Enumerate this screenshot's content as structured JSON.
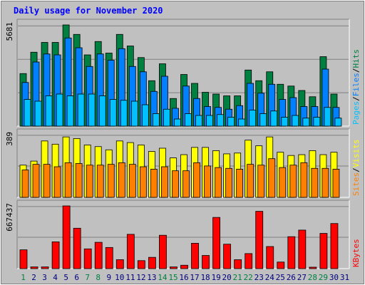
{
  "title": "Daily usage for November 2020",
  "chart_data": [
    {
      "type": "bar",
      "panel": "hits-files-pages",
      "categories": [
        "1",
        "2",
        "3",
        "4",
        "5",
        "6",
        "7",
        "8",
        "9",
        "10",
        "11",
        "12",
        "13",
        "14",
        "15",
        "16",
        "17",
        "18",
        "19",
        "20",
        "21",
        "22",
        "23",
        "24",
        "25",
        "26",
        "27",
        "28",
        "29",
        "30",
        "31"
      ],
      "ymax_label": "5681",
      "ymax": 5681,
      "grid": true,
      "series": [
        {
          "name": "Hits",
          "color": "#008040",
          "values": [
            2950,
            4150,
            4700,
            4700,
            5681,
            5150,
            4000,
            4750,
            4100,
            5150,
            4500,
            3850,
            2550,
            3500,
            1550,
            2900,
            2400,
            1900,
            1800,
            1700,
            1700,
            3150,
            2550,
            3050,
            2350,
            2250,
            2000,
            1650,
            3900,
            1800,
            0
          ]
        },
        {
          "name": "Files",
          "color": "#0080ff",
          "values": [
            2450,
            3600,
            4050,
            4000,
            4950,
            4400,
            3350,
            4050,
            3700,
            4350,
            3350,
            3050,
            1950,
            2800,
            1000,
            2250,
            1550,
            1100,
            1050,
            950,
            1150,
            2400,
            1850,
            2350,
            1500,
            1600,
            1100,
            1100,
            3200,
            1050,
            0
          ]
        },
        {
          "name": "Pages",
          "color": "#00c0ff",
          "values": [
            1500,
            1400,
            1700,
            1800,
            1700,
            1800,
            1800,
            1700,
            1500,
            1450,
            1400,
            1200,
            700,
            950,
            400,
            700,
            600,
            600,
            650,
            500,
            400,
            900,
            700,
            850,
            500,
            600,
            450,
            500,
            1050,
            450,
            0
          ]
        }
      ],
      "legend": [
        "Pages",
        "Files",
        "Hits"
      ],
      "legend_separator": "/"
    },
    {
      "type": "bar",
      "panel": "visits-sites",
      "categories": [
        "1",
        "2",
        "3",
        "4",
        "5",
        "6",
        "7",
        "8",
        "9",
        "10",
        "11",
        "12",
        "13",
        "14",
        "15",
        "16",
        "17",
        "18",
        "19",
        "20",
        "21",
        "22",
        "23",
        "24",
        "25",
        "26",
        "27",
        "28",
        "29",
        "30",
        "31"
      ],
      "ymax_label": "389",
      "ymax": 389,
      "grid": true,
      "series": [
        {
          "name": "Visits",
          "color": "#ffff00",
          "values": [
            200,
            225,
            350,
            330,
            375,
            365,
            325,
            315,
            295,
            350,
            340,
            325,
            285,
            305,
            245,
            265,
            310,
            310,
            290,
            270,
            275,
            355,
            320,
            375,
            280,
            260,
            265,
            290,
            265,
            280,
            0
          ]
        },
        {
          "name": "Sites",
          "color": "#ff8000",
          "values": [
            170,
            205,
            205,
            190,
            215,
            210,
            200,
            200,
            205,
            215,
            205,
            190,
            175,
            190,
            165,
            165,
            215,
            195,
            185,
            180,
            175,
            205,
            200,
            240,
            185,
            200,
            215,
            180,
            180,
            175,
            0
          ]
        }
      ],
      "legend": [
        "Sites",
        "Visits"
      ],
      "legend_separator": "/"
    },
    {
      "type": "bar",
      "panel": "kbytes",
      "categories": [
        "1",
        "2",
        "3",
        "4",
        "5",
        "6",
        "7",
        "8",
        "9",
        "10",
        "11",
        "12",
        "13",
        "14",
        "15",
        "16",
        "17",
        "18",
        "19",
        "20",
        "21",
        "22",
        "23",
        "24",
        "25",
        "26",
        "27",
        "28",
        "29",
        "30",
        "31"
      ],
      "ymax_label": "667437",
      "ymax": 667437,
      "grid": true,
      "series": [
        {
          "name": "KBytes",
          "color": "#ff0000",
          "values": [
            200000,
            18000,
            18000,
            285000,
            667437,
            430000,
            210000,
            280000,
            225000,
            95000,
            365000,
            85000,
            120000,
            355000,
            18000,
            36000,
            270000,
            140000,
            545000,
            260000,
            95000,
            160000,
            610000,
            235000,
            70000,
            340000,
            410000,
            12000,
            375000,
            480000,
            0
          ]
        }
      ],
      "legend": [
        "KBytes"
      ]
    }
  ],
  "x_labels": {
    "values": [
      "1",
      "2",
      "3",
      "4",
      "5",
      "6",
      "7",
      "8",
      "9",
      "10",
      "11",
      "12",
      "13",
      "14",
      "15",
      "16",
      "17",
      "18",
      "19",
      "20",
      "21",
      "22",
      "23",
      "24",
      "25",
      "26",
      "27",
      "28",
      "29",
      "30",
      "31"
    ],
    "weekend_color": "#008040",
    "weekday_color": "#000080",
    "weekend_days": [
      "1",
      "7",
      "8",
      "14",
      "15",
      "21",
      "22",
      "28",
      "29"
    ]
  },
  "colors": {
    "background": "#c0c0c0",
    "title": "#0000ff",
    "grid": "#808080"
  }
}
